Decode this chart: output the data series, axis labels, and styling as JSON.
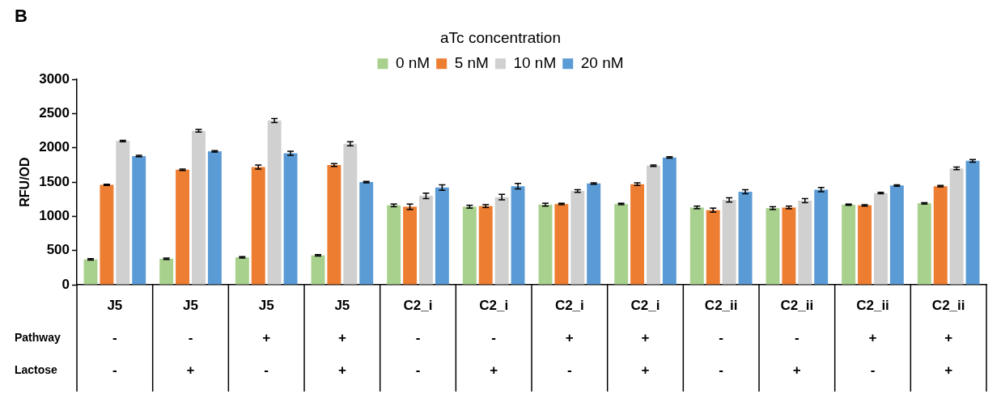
{
  "chart_data": {
    "type": "bar",
    "title": "B",
    "ylabel": "RFU/OD",
    "legend_title": "aTc concentration",
    "legend": "top",
    "categories": [
      "J5\n-\n-",
      "J5\n-\n+",
      "J5\n+\n-",
      "J5\n+\n+",
      "C2_i\n-\n-",
      "C2_i\n-\n+",
      "C2_i\n+\n-",
      "C2_i\n+\n+",
      "C2_ii\n-\n-",
      "C2_ii\n-\n+",
      "C2_ii\n+\n-",
      "C2_ii\n+\n+"
    ],
    "annotations": [
      "Pathway",
      "Lactose"
    ],
    "ylim": [
      0,
      3000
    ],
    "yticks": [
      0,
      500,
      1000,
      1500,
      2000,
      2500,
      3000
    ],
    "grid": false,
    "series": [
      {
        "name": "0 nM",
        "color": "#a9d18e",
        "values": [
          370,
          380,
          400,
          430,
          1160,
          1140,
          1170,
          1180,
          1130,
          1120,
          1170,
          1190
        ],
        "errors": [
          10,
          10,
          10,
          10,
          20,
          20,
          20,
          10,
          20,
          20,
          10,
          10
        ]
      },
      {
        "name": "5 nM",
        "color": "#ed7d31",
        "values": [
          1460,
          1680,
          1720,
          1750,
          1140,
          1150,
          1180,
          1470,
          1090,
          1130,
          1160,
          1440
        ],
        "errors": [
          10,
          10,
          30,
          20,
          40,
          20,
          10,
          20,
          30,
          20,
          10,
          10
        ]
      },
      {
        "name": "10 nM",
        "color": "#d0d0d0",
        "values": [
          2100,
          2250,
          2400,
          2060,
          1300,
          1280,
          1370,
          1740,
          1240,
          1230,
          1340,
          1700
        ],
        "errors": [
          10,
          20,
          30,
          30,
          40,
          40,
          20,
          10,
          30,
          30,
          10,
          20
        ]
      },
      {
        "name": "20 nM",
        "color": "#5b9bd5",
        "values": [
          1880,
          1950,
          1920,
          1500,
          1420,
          1440,
          1480,
          1860,
          1360,
          1390,
          1450,
          1810
        ],
        "errors": [
          10,
          10,
          30,
          10,
          40,
          40,
          10,
          10,
          30,
          30,
          10,
          20
        ]
      }
    ]
  }
}
